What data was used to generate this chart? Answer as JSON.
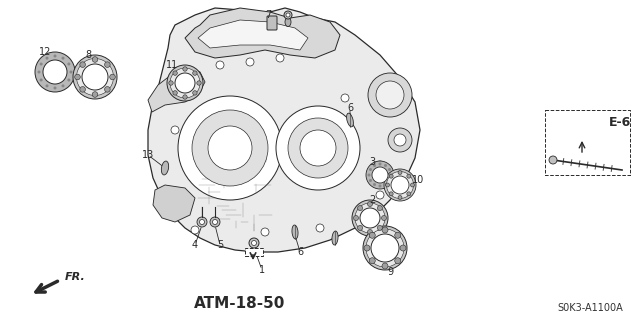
{
  "title": "ATM-18-50",
  "ref_code": "S0K3-A1100A",
  "diagram_code": "E-6",
  "bg_color": "#ffffff",
  "line_color": "#2a2a2a",
  "fr_label": "FR.",
  "lw_main": 0.9,
  "lw_thin": 0.5,
  "housing_fill": "#e8e8e8",
  "part_fill": "#cccccc",
  "bearing_fill": "#d4d4d4",
  "seal_fill": "#bbbbbb"
}
